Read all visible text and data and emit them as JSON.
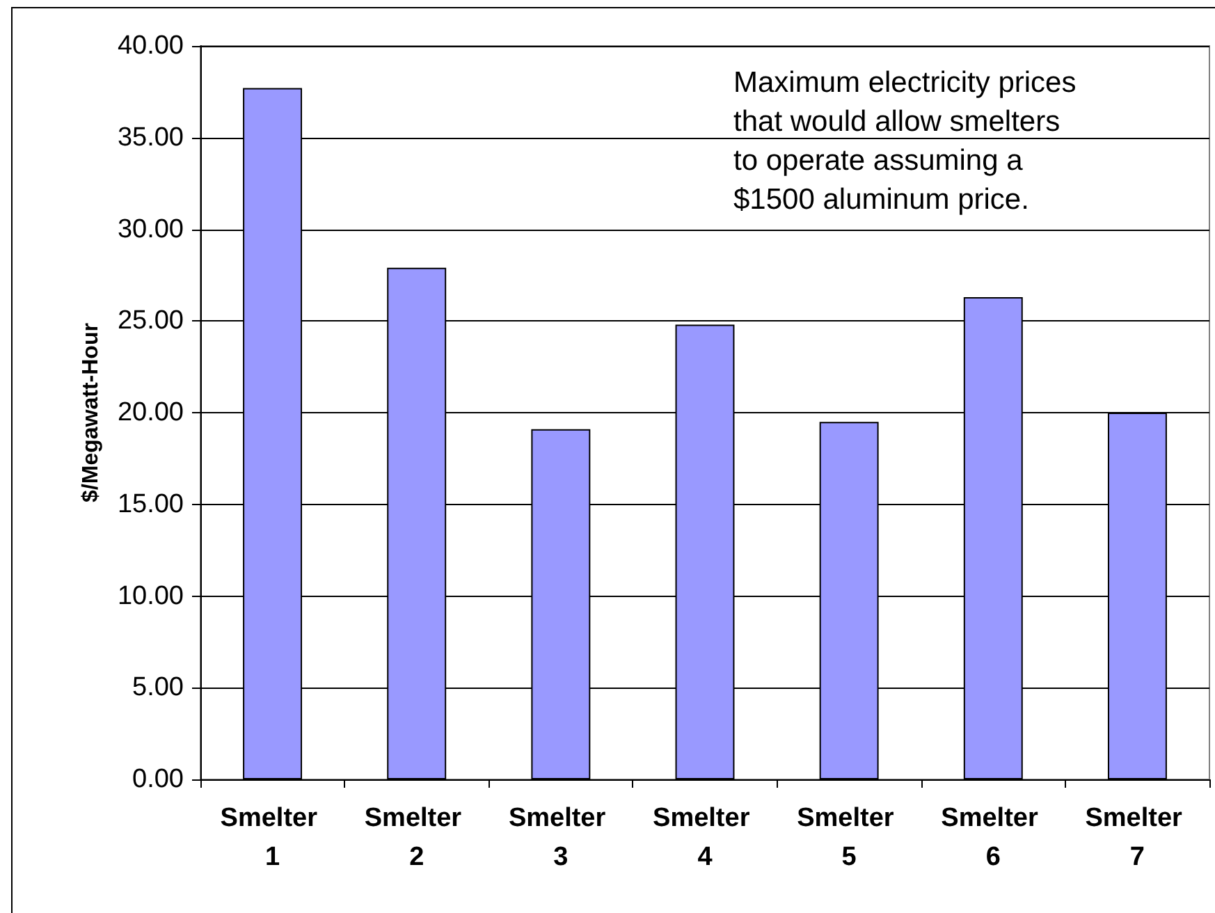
{
  "chart_data": {
    "type": "bar",
    "categories": [
      "Smelter 1",
      "Smelter 2",
      "Smelter 3",
      "Smelter 4",
      "Smelter 5",
      "Smelter 6",
      "Smelter 7"
    ],
    "values": [
      37.7,
      27.9,
      19.1,
      24.8,
      19.5,
      26.3,
      20.0
    ],
    "color": "#9999ff",
    "ylabel": "$/Megawatt-Hour",
    "ylim": [
      0,
      40
    ],
    "yticks": [
      {
        "value": 0,
        "label": "0.00"
      },
      {
        "value": 5,
        "label": "5.00"
      },
      {
        "value": 10,
        "label": "10.00"
      },
      {
        "value": 15,
        "label": "15.00"
      },
      {
        "value": 20,
        "label": "20.00"
      },
      {
        "value": 25,
        "label": "25.00"
      },
      {
        "value": 30,
        "label": "30.00"
      },
      {
        "value": 35,
        "label": "35.00"
      },
      {
        "value": 40,
        "label": "40.00"
      }
    ],
    "grid": "y",
    "annotations": [
      "Maximum electricity prices that would allow smelters to operate assuming a $1500 aluminum price."
    ]
  }
}
